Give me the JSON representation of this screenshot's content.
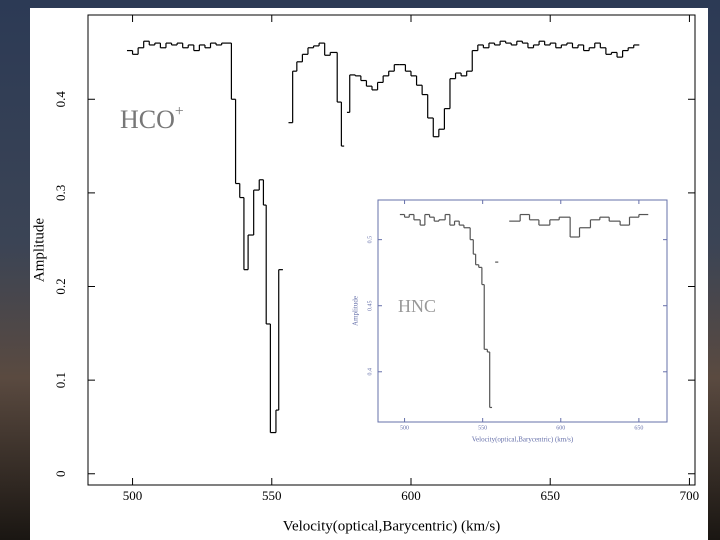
{
  "chart_data": [
    {
      "type": "step",
      "x_label": "Velocity(optical,Barycentric) (km/s)",
      "y_label": "Amplitude",
      "annotation": "HCO",
      "annotation_sup": "+",
      "color": "#000000",
      "x": [
        498,
        500,
        502,
        504,
        506,
        508,
        510,
        512,
        514,
        516,
        518,
        520,
        522,
        524,
        526,
        528,
        530,
        532,
        535.5,
        537,
        538.5,
        540,
        541.5,
        543.5,
        545.5,
        547,
        548,
        549.5,
        551.5,
        552.5,
        554,
        556,
        557.5,
        559,
        561,
        563,
        565,
        567,
        569,
        571,
        573.5,
        575,
        576,
        577,
        578,
        580,
        582,
        584,
        586,
        588,
        590,
        592,
        594,
        596,
        598,
        600,
        602,
        604,
        606,
        608,
        610,
        612,
        614,
        616,
        618,
        620,
        622,
        624,
        626,
        628,
        630,
        632,
        634,
        636,
        638,
        640,
        642,
        644,
        646,
        648,
        650,
        652,
        654,
        656,
        658,
        660,
        662,
        664,
        666,
        668,
        670,
        672,
        674,
        676,
        678,
        680
      ],
      "values": [
        0.452,
        0.448,
        0.455,
        0.462,
        0.458,
        0.46,
        0.455,
        0.46,
        0.458,
        0.46,
        0.455,
        0.458,
        0.452,
        0.458,
        0.455,
        0.46,
        0.458,
        0.46,
        0.4,
        0.31,
        0.295,
        0.218,
        0.255,
        0.303,
        0.314,
        0.287,
        0.16,
        0.044,
        0.068,
        0.218,
        null,
        0.375,
        0.43,
        0.44,
        0.448,
        0.455,
        0.457,
        0.46,
        0.447,
        0.45,
        0.397,
        0.35,
        null,
        0.386,
        0.426,
        0.425,
        0.42,
        0.414,
        0.41,
        0.418,
        0.425,
        0.43,
        0.437,
        0.437,
        0.43,
        0.425,
        0.415,
        0.405,
        0.38,
        0.36,
        0.368,
        0.39,
        0.422,
        0.428,
        0.425,
        0.43,
        0.452,
        0.458,
        0.455,
        0.46,
        0.458,
        0.462,
        0.46,
        0.458,
        0.462,
        0.46,
        0.455,
        0.458,
        0.462,
        0.458,
        0.46,
        0.455,
        0.458,
        0.46,
        0.455,
        0.458,
        0.452,
        0.455,
        0.46,
        0.455,
        0.448,
        0.45,
        0.445,
        0.452,
        0.455,
        0.458
      ],
      "xlim": [
        484,
        702
      ],
      "ylim": [
        -0.012,
        0.49
      ],
      "xticks": [
        500,
        550,
        600,
        650,
        700
      ],
      "yticks": [
        0,
        0.1,
        0.2,
        0.3,
        0.4
      ]
    },
    {
      "type": "step",
      "x_label": "Velocity(optical,Barycentric) (km/s)",
      "y_label": "Amplitude",
      "annotation": "HNC",
      "color": "#555555",
      "x": [
        497,
        500,
        503,
        506,
        510,
        513,
        516,
        519,
        522,
        526,
        529,
        532,
        535,
        538,
        542,
        544,
        545.5,
        547.5,
        549.5,
        551,
        553,
        554.5,
        556,
        558,
        560,
        567,
        574,
        580,
        586,
        593,
        599,
        606,
        612,
        619,
        625,
        631,
        638,
        644,
        650
      ],
      "values": [
        0.519,
        0.517,
        0.519,
        0.515,
        0.511,
        0.519,
        0.517,
        0.514,
        0.515,
        0.519,
        0.511,
        0.514,
        0.511,
        0.509,
        0.5,
        0.489,
        0.481,
        0.479,
        0.466,
        0.417,
        0.415,
        0.373,
        null,
        0.483,
        null,
        0.514,
        0.519,
        0.515,
        0.511,
        0.515,
        0.517,
        0.502,
        0.509,
        0.515,
        0.517,
        0.514,
        0.511,
        0.517,
        0.519
      ],
      "xlim": [
        483,
        668
      ],
      "ylim": [
        0.362,
        0.53
      ],
      "xticks": [
        500,
        550,
        600,
        650
      ],
      "yticks": [
        0.4,
        0.45,
        0.5
      ]
    }
  ]
}
